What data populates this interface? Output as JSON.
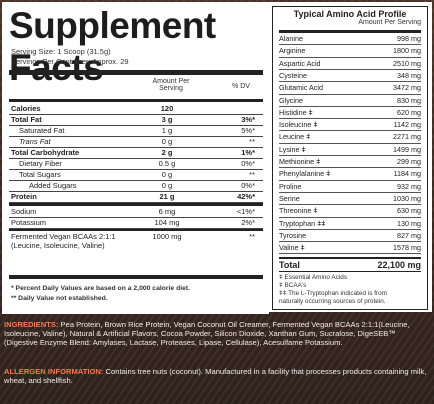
{
  "facts": {
    "title": "Supplement Facts",
    "serving_size": "Serving Size: 1 Scoop (31.5g)",
    "servings_per_container": "Servings Per Container: Approx. 29",
    "header_amount": "Amount Per",
    "header_serving": "Serving",
    "header_dv": "% DV",
    "rows": [
      {
        "label": "Calories",
        "amount": "120",
        "dv": ""
      },
      {
        "label": "Total Fat",
        "amount": "3 g",
        "dv": "3%*"
      },
      {
        "label": "Saturated Fat",
        "amount": "1 g",
        "dv": "5%*"
      },
      {
        "label": "Trans Fat",
        "amount": "0 g",
        "dv": "**"
      },
      {
        "label": "Total Carbohydrate",
        "amount": "2 g",
        "dv": "1%*"
      },
      {
        "label": "Dietary Fiber",
        "amount": "0.5 g",
        "dv": "0%*"
      },
      {
        "label": "Total Sugars",
        "amount": "0 g",
        "dv": "**"
      },
      {
        "label": "Added Sugars",
        "amount": "0 g",
        "dv": "0%*"
      },
      {
        "label": "Protein",
        "amount": "21 g",
        "dv": "42%*"
      },
      {
        "label": "Sodium",
        "amount": "6 mg",
        "dv": "<1%*"
      },
      {
        "label": "Potassium",
        "amount": "104 mg",
        "dv": "2%*"
      }
    ],
    "bcaa_label_1": "Fermented Vegan BCAAs 2:1:1",
    "bcaa_label_2": "(Leucine, Isoleucine, Valine)",
    "bcaa_amount": "1000 mg",
    "bcaa_dv": "**",
    "footnote_1": "* Percent Daily Values are based on a 2,000 calorie diet.",
    "footnote_2": "** Daily Value not established."
  },
  "amino": {
    "title": "Typical Amino Acid Profile",
    "subtitle": "Amount Per Serving",
    "rows": [
      {
        "name": "Alanine",
        "value": "998 mg"
      },
      {
        "name": "Arginine",
        "value": "1800 mg"
      },
      {
        "name": "Aspartic Acid",
        "value": "2510 mg"
      },
      {
        "name": "Cysteine",
        "value": "348 mg"
      },
      {
        "name": "Glutamic Acid",
        "value": "3472 mg"
      },
      {
        "name": "Glycine",
        "value": "830 mg"
      },
      {
        "name": "Histidine ǂ",
        "value": "620 mg"
      },
      {
        "name": "Isoleucine ǂ",
        "value": "1142 mg"
      },
      {
        "name": "Leucine ǂ",
        "value": "2271 mg"
      },
      {
        "name": "Lysine ǂ",
        "value": "1499 mg"
      },
      {
        "name": "Methionine ǂ",
        "value": "299 mg"
      },
      {
        "name": "Phenylalanine ǂ",
        "value": "1184 mg"
      },
      {
        "name": "Proline",
        "value": "932 mg"
      },
      {
        "name": "Serine",
        "value": "1030 mg"
      },
      {
        "name": "Threonine ǂ",
        "value": "630 mg"
      },
      {
        "name": "Tryptophan ǂǂ",
        "value": "130 mg"
      },
      {
        "name": "Tyrosine",
        "value": "827 mg"
      },
      {
        "name": "Valine ǂ",
        "value": "1578 mg"
      }
    ],
    "total_label": "Total",
    "total_value": "22,100 mg",
    "legend_1": "ǂ Essential Amino Acids",
    "legend_2": "ǂ BCAA's",
    "legend_3": "ǂǂ The L-Tryptophan indicated is from",
    "legend_4": "naturally occurring sources of protein."
  },
  "ingredients": {
    "key": "INGREDIENTS:",
    "text": " Pea Protein, Brown Rice Protein, Vegan Coconut Oil Creamer, Fermented Vegan BCAAs 2:1:1(Leucine, Isoleucine, Valine), Natural & Artificial Flavors, Cocoa Powder, Silicon Dioxide, Xanthan Gum, Sucralose, DigeSEB™ (Digestive Enzyme Blend: Amylases, Lactase, Proteases, Lipase, Cellulase), Acesulfame Potassium."
  },
  "allergen": {
    "key": "ALLERGEN INFORMATION:",
    "text": " Contains tree nuts (coconut). Manufactured in a facility that processes products containing milk, wheat, and shellfish."
  }
}
